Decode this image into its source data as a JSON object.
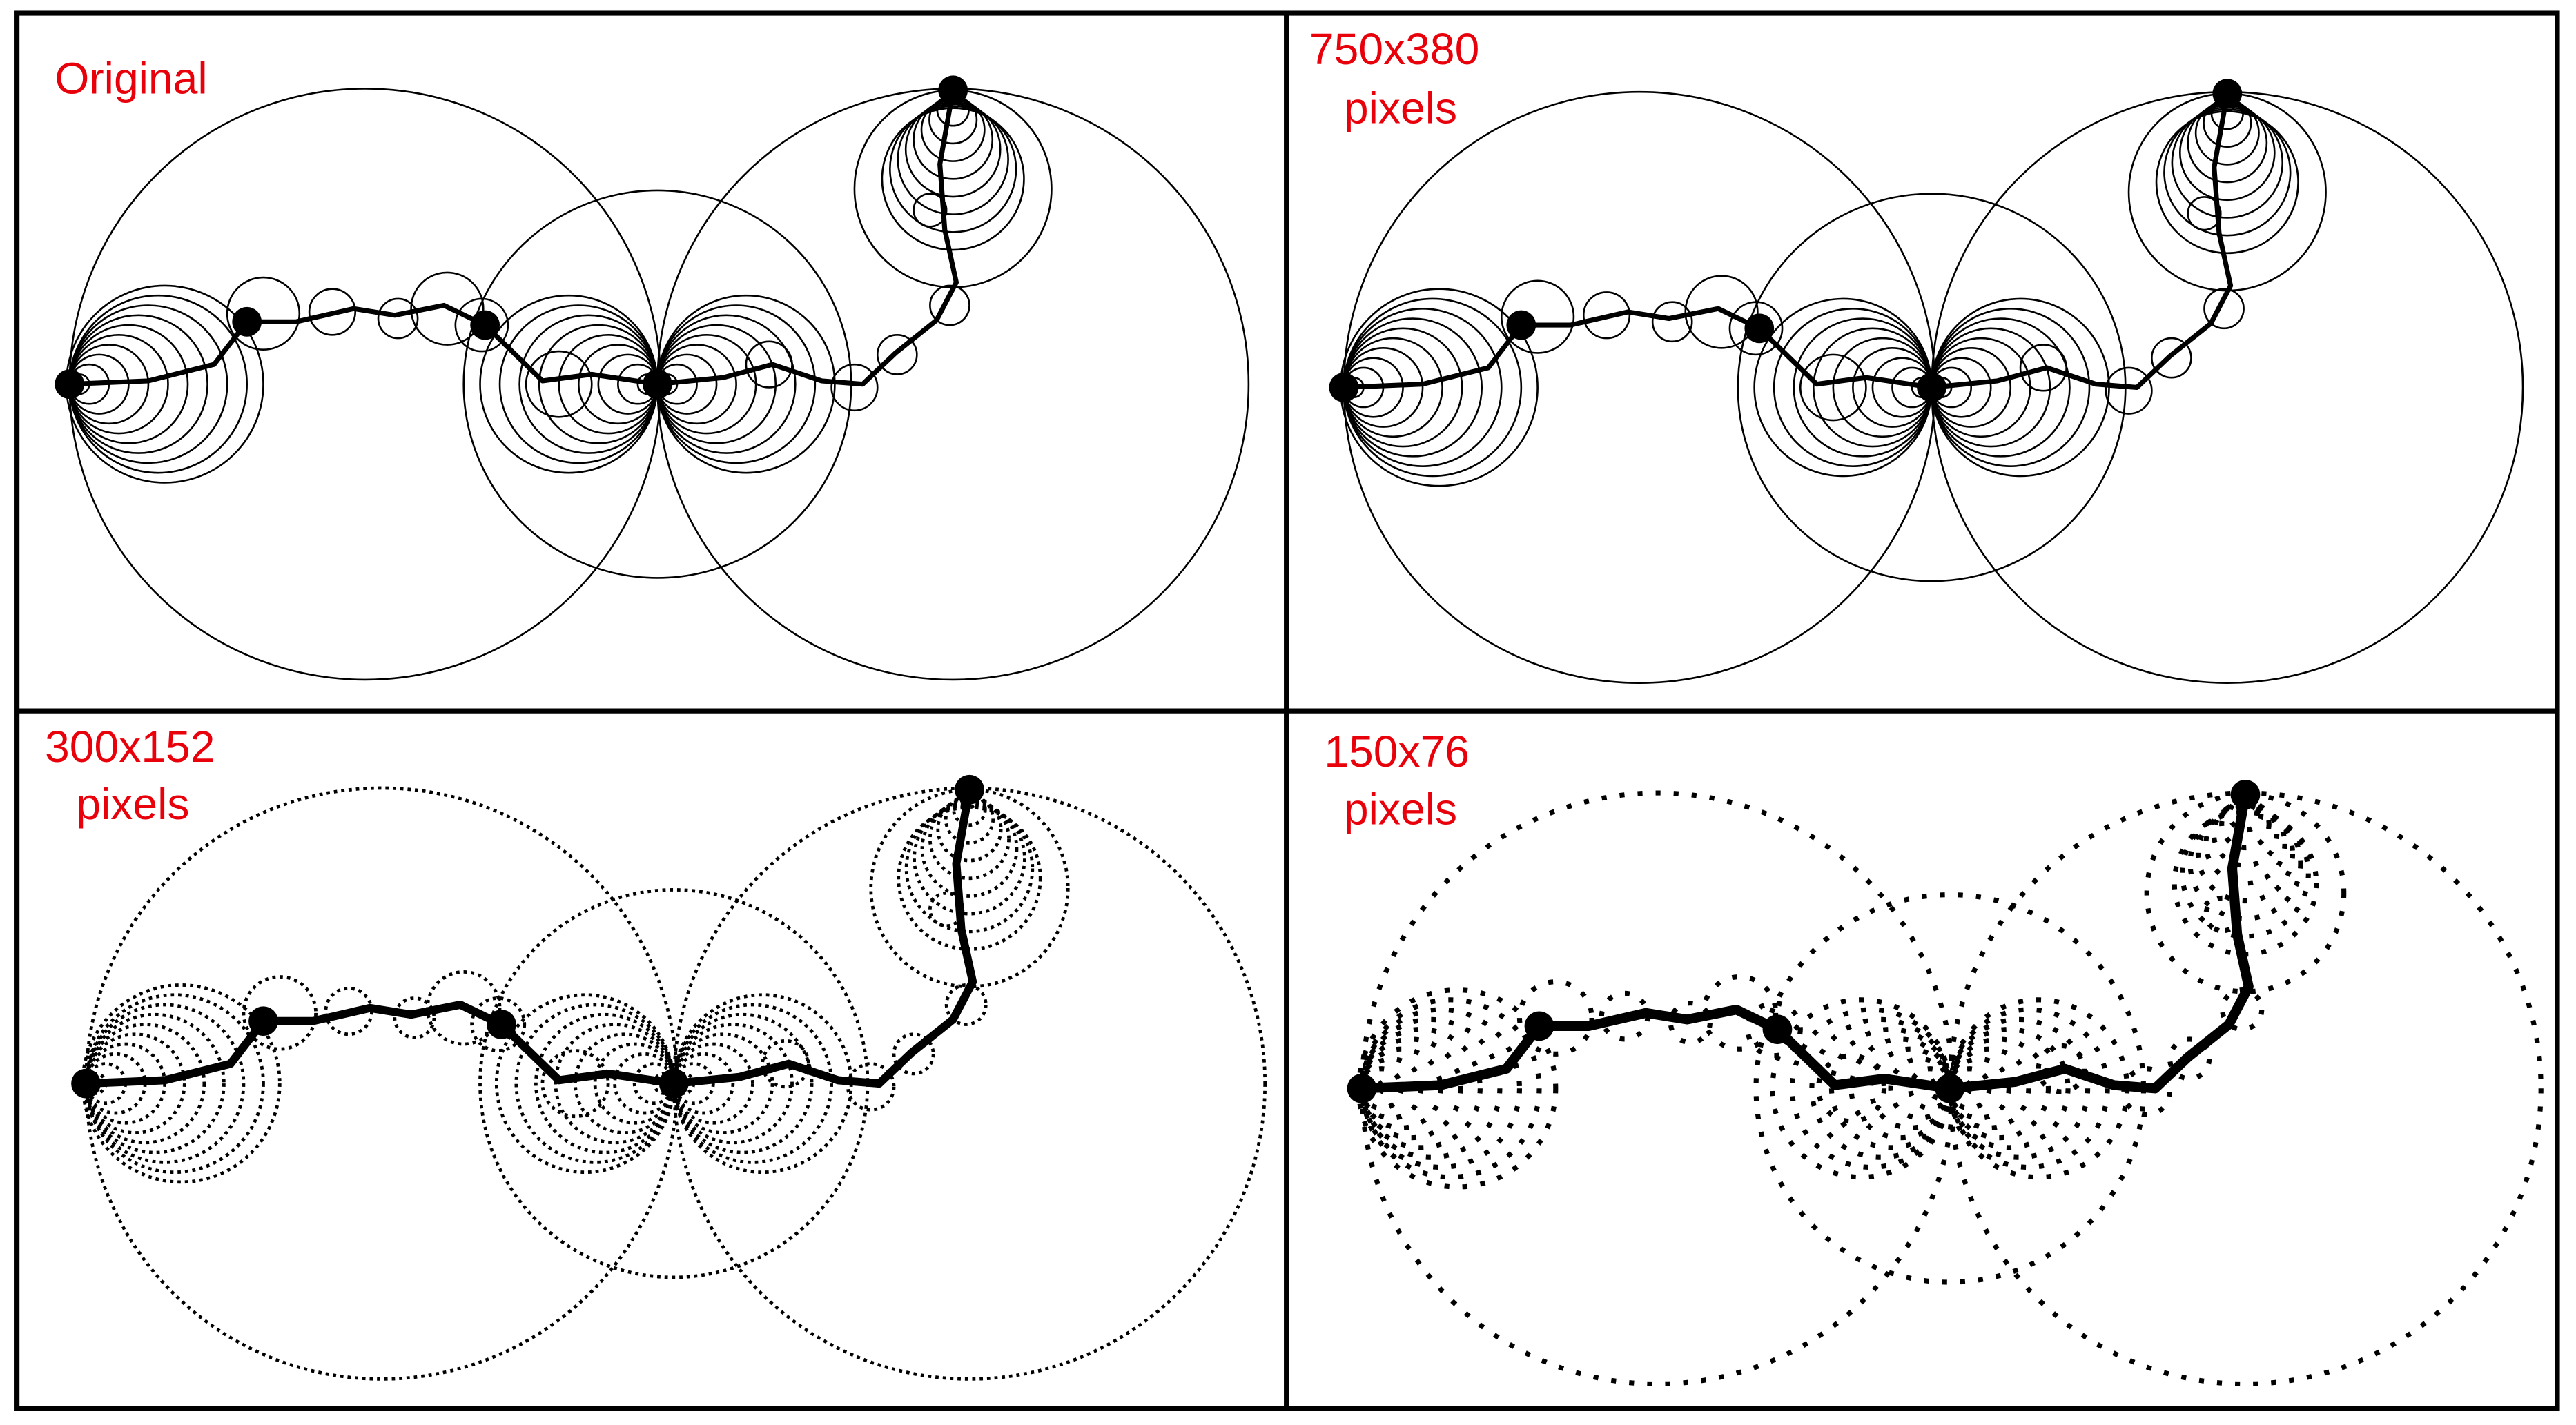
{
  "panels": [
    {
      "label": [
        "Original"
      ]
    },
    {
      "label": [
        "750x380",
        "pixels"
      ]
    },
    {
      "label": [
        "300x152",
        "pixels"
      ]
    },
    {
      "label": [
        "150x76",
        "pixels"
      ]
    }
  ]
}
